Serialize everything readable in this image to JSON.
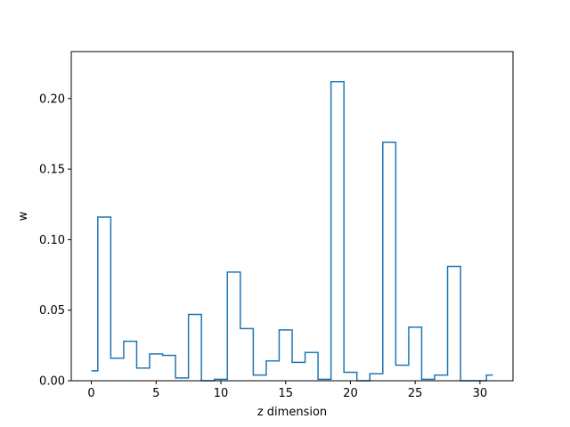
{
  "chart_data": {
    "type": "line",
    "style": "step-mid",
    "title": "",
    "xlabel": "z dimension",
    "ylabel": "w",
    "xlim": [
      -1.55,
      32.55
    ],
    "ylim": [
      0,
      0.2333
    ],
    "xticks": [
      0,
      5,
      10,
      15,
      20,
      25,
      30
    ],
    "xtick_labels": [
      "0",
      "5",
      "10",
      "15",
      "20",
      "25",
      "30"
    ],
    "yticks": [
      0.0,
      0.05,
      0.1,
      0.15,
      0.2
    ],
    "ytick_labels": [
      "0.00",
      "0.05",
      "0.10",
      "0.15",
      "0.20"
    ],
    "grid": false,
    "line_color": "#1f77b4",
    "x": [
      0,
      1,
      2,
      3,
      4,
      5,
      6,
      7,
      8,
      9,
      10,
      11,
      12,
      13,
      14,
      15,
      16,
      17,
      18,
      19,
      20,
      21,
      22,
      23,
      24,
      25,
      26,
      27,
      28,
      29,
      30,
      31
    ],
    "values": [
      0.007,
      0.116,
      0.016,
      0.028,
      0.009,
      0.019,
      0.018,
      0.002,
      0.047,
      0.0,
      0.001,
      0.077,
      0.037,
      0.004,
      0.014,
      0.036,
      0.013,
      0.02,
      0.001,
      0.212,
      0.006,
      0.0,
      0.005,
      0.169,
      0.011,
      0.038,
      0.001,
      0.004,
      0.081,
      0.0,
      0.0,
      0.004
    ]
  }
}
